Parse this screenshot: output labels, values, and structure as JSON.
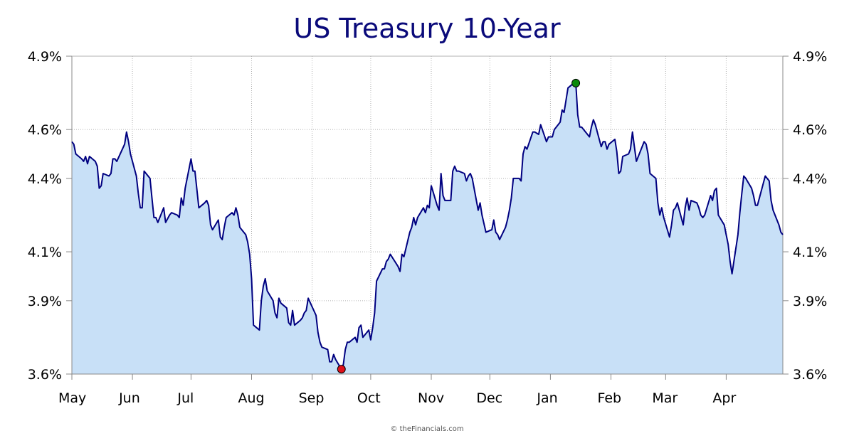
{
  "chart_data": {
    "type": "area",
    "title": "US Treasury 10-Year",
    "credit": "© theFinancials.com",
    "colors": {
      "line": "#000080",
      "fill": "#c8e0f7",
      "high_marker": "#0a8a0a",
      "low_marker": "#e0101a",
      "grid": "#b0b0b0",
      "axis": "#888888"
    },
    "ylim": [
      3.6,
      4.9
    ],
    "y_ticks": [
      {
        "value": 3.6,
        "label": "3.6%"
      },
      {
        "value": 3.9,
        "label": "3.9%"
      },
      {
        "value": 4.1,
        "label": "4.1%"
      },
      {
        "value": 4.4,
        "label": "4.4%"
      },
      {
        "value": 4.6,
        "label": "4.6%"
      },
      {
        "value": 4.9,
        "label": "4.9%"
      }
    ],
    "x_range": [
      "May 1",
      "Apr 30"
    ],
    "x_ticks": [
      "May",
      "Jun",
      "Jul",
      "Aug",
      "Sep",
      "Oct",
      "Nov",
      "Dec",
      "Jan",
      "Feb",
      "Mar",
      "Apr"
    ],
    "grid": true,
    "legend": "none",
    "high": {
      "date": "Jan 14",
      "value": 4.79
    },
    "low": {
      "date": "Sep 16",
      "value": 3.62
    },
    "series": [
      {
        "points": [
          [
            "May 1",
            4.55
          ],
          [
            "May 2",
            4.54
          ],
          [
            "May 3",
            4.5
          ],
          [
            "May 6",
            4.48
          ],
          [
            "May 7",
            4.47
          ],
          [
            "May 8",
            4.49
          ],
          [
            "May 9",
            4.46
          ],
          [
            "May 10",
            4.49
          ],
          [
            "May 13",
            4.47
          ],
          [
            "May 14",
            4.45
          ],
          [
            "May 15",
            4.36
          ],
          [
            "May 16",
            4.37
          ],
          [
            "May 17",
            4.42
          ],
          [
            "May 20",
            4.41
          ],
          [
            "May 21",
            4.42
          ],
          [
            "May 22",
            4.48
          ],
          [
            "May 23",
            4.48
          ],
          [
            "May 24",
            4.47
          ],
          [
            "May 28",
            4.54
          ],
          [
            "May 29",
            4.59
          ],
          [
            "May 30",
            4.55
          ],
          [
            "May 31",
            4.5
          ],
          [
            "Jun 3",
            4.41
          ],
          [
            "Jun 4",
            4.34
          ],
          [
            "Jun 5",
            4.28
          ],
          [
            "Jun 6",
            4.28
          ],
          [
            "Jun 7",
            4.43
          ],
          [
            "Jun 10",
            4.4
          ],
          [
            "Jun 11",
            4.32
          ],
          [
            "Jun 12",
            4.24
          ],
          [
            "Jun 13",
            4.24
          ],
          [
            "Jun 14",
            4.22
          ],
          [
            "Jun 17",
            4.28
          ],
          [
            "Jun 18",
            4.22
          ],
          [
            "Jun 20",
            4.25
          ],
          [
            "Jun 21",
            4.26
          ],
          [
            "Jun 24",
            4.25
          ],
          [
            "Jun 25",
            4.24
          ],
          [
            "Jun 26",
            4.32
          ],
          [
            "Jun 27",
            4.29
          ],
          [
            "Jun 28",
            4.36
          ],
          [
            "Jul 1",
            4.48
          ],
          [
            "Jul 2",
            4.43
          ],
          [
            "Jul 3",
            4.43
          ],
          [
            "Jul 5",
            4.28
          ],
          [
            "Jul 8",
            4.3
          ],
          [
            "Jul 9",
            4.31
          ],
          [
            "Jul 10",
            4.29
          ],
          [
            "Jul 11",
            4.21
          ],
          [
            "Jul 12",
            4.19
          ],
          [
            "Jul 15",
            4.23
          ],
          [
            "Jul 16",
            4.16
          ],
          [
            "Jul 17",
            4.15
          ],
          [
            "Jul 18",
            4.2
          ],
          [
            "Jul 19",
            4.24
          ],
          [
            "Jul 22",
            4.26
          ],
          [
            "Jul 23",
            4.25
          ],
          [
            "Jul 24",
            4.28
          ],
          [
            "Jul 25",
            4.25
          ],
          [
            "Jul 26",
            4.2
          ],
          [
            "Jul 29",
            4.17
          ],
          [
            "Jul 30",
            4.14
          ],
          [
            "Jul 31",
            4.09
          ],
          [
            "Aug 1",
            3.99
          ],
          [
            "Aug 2",
            3.8
          ],
          [
            "Aug 5",
            3.78
          ],
          [
            "Aug 6",
            3.9
          ],
          [
            "Aug 7",
            3.96
          ],
          [
            "Aug 8",
            3.99
          ],
          [
            "Aug 9",
            3.94
          ],
          [
            "Aug 12",
            3.9
          ],
          [
            "Aug 13",
            3.85
          ],
          [
            "Aug 14",
            3.83
          ],
          [
            "Aug 15",
            3.91
          ],
          [
            "Aug 16",
            3.89
          ],
          [
            "Aug 19",
            3.87
          ],
          [
            "Aug 20",
            3.81
          ],
          [
            "Aug 21",
            3.8
          ],
          [
            "Aug 22",
            3.86
          ],
          [
            "Aug 23",
            3.8
          ],
          [
            "Aug 26",
            3.82
          ],
          [
            "Aug 27",
            3.83
          ],
          [
            "Aug 28",
            3.85
          ],
          [
            "Aug 29",
            3.86
          ],
          [
            "Aug 30",
            3.91
          ],
          [
            "Sep 3",
            3.84
          ],
          [
            "Sep 4",
            3.77
          ],
          [
            "Sep 5",
            3.73
          ],
          [
            "Sep 6",
            3.71
          ],
          [
            "Sep 9",
            3.7
          ],
          [
            "Sep 10",
            3.65
          ],
          [
            "Sep 11",
            3.65
          ],
          [
            "Sep 12",
            3.68
          ],
          [
            "Sep 13",
            3.66
          ],
          [
            "Sep 16",
            3.62
          ],
          [
            "Sep 17",
            3.64
          ],
          [
            "Sep 18",
            3.7
          ],
          [
            "Sep 19",
            3.73
          ],
          [
            "Sep 20",
            3.73
          ],
          [
            "Sep 23",
            3.75
          ],
          [
            "Sep 24",
            3.73
          ],
          [
            "Sep 25",
            3.79
          ],
          [
            "Sep 26",
            3.8
          ],
          [
            "Sep 27",
            3.75
          ],
          [
            "Sep 30",
            3.78
          ],
          [
            "Oct 1",
            3.74
          ],
          [
            "Oct 2",
            3.79
          ],
          [
            "Oct 3",
            3.85
          ],
          [
            "Oct 4",
            3.98
          ],
          [
            "Oct 7",
            4.03
          ],
          [
            "Oct 8",
            4.03
          ],
          [
            "Oct 9",
            4.06
          ],
          [
            "Oct 10",
            4.07
          ],
          [
            "Oct 11",
            4.09
          ],
          [
            "Oct 15",
            4.04
          ],
          [
            "Oct 16",
            4.02
          ],
          [
            "Oct 17",
            4.09
          ],
          [
            "Oct 18",
            4.08
          ],
          [
            "Oct 21",
            4.18
          ],
          [
            "Oct 22",
            4.2
          ],
          [
            "Oct 23",
            4.24
          ],
          [
            "Oct 24",
            4.21
          ],
          [
            "Oct 25",
            4.24
          ],
          [
            "Oct 28",
            4.28
          ],
          [
            "Oct 29",
            4.26
          ],
          [
            "Oct 30",
            4.29
          ],
          [
            "Oct 31",
            4.28
          ],
          [
            "Nov 1",
            4.37
          ],
          [
            "Nov 4",
            4.29
          ],
          [
            "Nov 5",
            4.27
          ],
          [
            "Nov 6",
            4.42
          ],
          [
            "Nov 7",
            4.33
          ],
          [
            "Nov 8",
            4.31
          ],
          [
            "Nov 11",
            4.31
          ],
          [
            "Nov 12",
            4.43
          ],
          [
            "Nov 13",
            4.45
          ],
          [
            "Nov 14",
            4.43
          ],
          [
            "Nov 15",
            4.43
          ],
          [
            "Nov 18",
            4.42
          ],
          [
            "Nov 19",
            4.39
          ],
          [
            "Nov 20",
            4.41
          ],
          [
            "Nov 21",
            4.42
          ],
          [
            "Nov 22",
            4.4
          ],
          [
            "Nov 25",
            4.27
          ],
          [
            "Nov 26",
            4.3
          ],
          [
            "Nov 27",
            4.25
          ],
          [
            "Nov 29",
            4.18
          ],
          [
            "Dec 2",
            4.19
          ],
          [
            "Dec 3",
            4.23
          ],
          [
            "Dec 4",
            4.18
          ],
          [
            "Dec 5",
            4.17
          ],
          [
            "Dec 6",
            4.15
          ],
          [
            "Dec 9",
            4.2
          ],
          [
            "Dec 10",
            4.23
          ],
          [
            "Dec 11",
            4.27
          ],
          [
            "Dec 12",
            4.32
          ],
          [
            "Dec 13",
            4.4
          ],
          [
            "Dec 16",
            4.4
          ],
          [
            "Dec 17",
            4.39
          ],
          [
            "Dec 18",
            4.5
          ],
          [
            "Dec 19",
            4.53
          ],
          [
            "Dec 20",
            4.52
          ],
          [
            "Dec 23",
            4.59
          ],
          [
            "Dec 24",
            4.59
          ],
          [
            "Dec 26",
            4.58
          ],
          [
            "Dec 27",
            4.62
          ],
          [
            "Dec 30",
            4.55
          ],
          [
            "Dec 31",
            4.57
          ],
          [
            "Jan 2",
            4.57
          ],
          [
            "Jan 3",
            4.6
          ],
          [
            "Jan 6",
            4.63
          ],
          [
            "Jan 7",
            4.68
          ],
          [
            "Jan 8",
            4.67
          ],
          [
            "Jan 10",
            4.77
          ],
          [
            "Jan 13",
            4.79
          ],
          [
            "Jan 14",
            4.79
          ],
          [
            "Jan 15",
            4.66
          ],
          [
            "Jan 16",
            4.61
          ],
          [
            "Jan 17",
            4.61
          ],
          [
            "Jan 21",
            4.57
          ],
          [
            "Jan 22",
            4.61
          ],
          [
            "Jan 23",
            4.64
          ],
          [
            "Jan 24",
            4.62
          ],
          [
            "Jan 27",
            4.53
          ],
          [
            "Jan 28",
            4.55
          ],
          [
            "Jan 29",
            4.55
          ],
          [
            "Jan 30",
            4.52
          ],
          [
            "Jan 31",
            4.54
          ],
          [
            "Feb 3",
            4.56
          ],
          [
            "Feb 4",
            4.51
          ],
          [
            "Feb 5",
            4.42
          ],
          [
            "Feb 6",
            4.43
          ],
          [
            "Feb 7",
            4.49
          ],
          [
            "Feb 10",
            4.5
          ],
          [
            "Feb 11",
            4.52
          ],
          [
            "Feb 12",
            4.59
          ],
          [
            "Feb 13",
            4.53
          ],
          [
            "Feb 14",
            4.47
          ],
          [
            "Feb 18",
            4.55
          ],
          [
            "Feb 19",
            4.54
          ],
          [
            "Feb 20",
            4.5
          ],
          [
            "Feb 21",
            4.42
          ],
          [
            "Feb 24",
            4.4
          ],
          [
            "Feb 25",
            4.3
          ],
          [
            "Feb 26",
            4.25
          ],
          [
            "Feb 27",
            4.28
          ],
          [
            "Feb 28",
            4.24
          ],
          [
            "Mar 3",
            4.16
          ],
          [
            "Mar 4",
            4.21
          ],
          [
            "Mar 5",
            4.27
          ],
          [
            "Mar 6",
            4.28
          ],
          [
            "Mar 7",
            4.3
          ],
          [
            "Mar 10",
            4.21
          ],
          [
            "Mar 11",
            4.28
          ],
          [
            "Mar 12",
            4.32
          ],
          [
            "Mar 13",
            4.27
          ],
          [
            "Mar 14",
            4.31
          ],
          [
            "Mar 17",
            4.3
          ],
          [
            "Mar 18",
            4.28
          ],
          [
            "Mar 19",
            4.25
          ],
          [
            "Mar 20",
            4.24
          ],
          [
            "Mar 21",
            4.25
          ],
          [
            "Mar 24",
            4.33
          ],
          [
            "Mar 25",
            4.31
          ],
          [
            "Mar 26",
            4.35
          ],
          [
            "Mar 27",
            4.36
          ],
          [
            "Mar 28",
            4.25
          ],
          [
            "Mar 31",
            4.21
          ],
          [
            "Apr 1",
            4.17
          ],
          [
            "Apr 2",
            4.13
          ],
          [
            "Apr 3",
            4.06
          ],
          [
            "Apr 4",
            4.01
          ],
          [
            "Apr 7",
            4.17
          ],
          [
            "Apr 8",
            4.26
          ],
          [
            "Apr 9",
            4.34
          ],
          [
            "Apr 10",
            4.41
          ],
          [
            "Apr 11",
            4.4
          ],
          [
            "Apr 14",
            4.36
          ],
          [
            "Apr 15",
            4.33
          ],
          [
            "Apr 16",
            4.29
          ],
          [
            "Apr 17",
            4.29
          ],
          [
            "Apr 21",
            4.41
          ],
          [
            "Apr 22",
            4.4
          ],
          [
            "Apr 23",
            4.39
          ],
          [
            "Apr 24",
            4.31
          ],
          [
            "Apr 25",
            4.27
          ],
          [
            "Apr 28",
            4.21
          ],
          [
            "Apr 29",
            4.18
          ],
          [
            "Apr 30",
            4.17
          ]
        ]
      }
    ]
  }
}
